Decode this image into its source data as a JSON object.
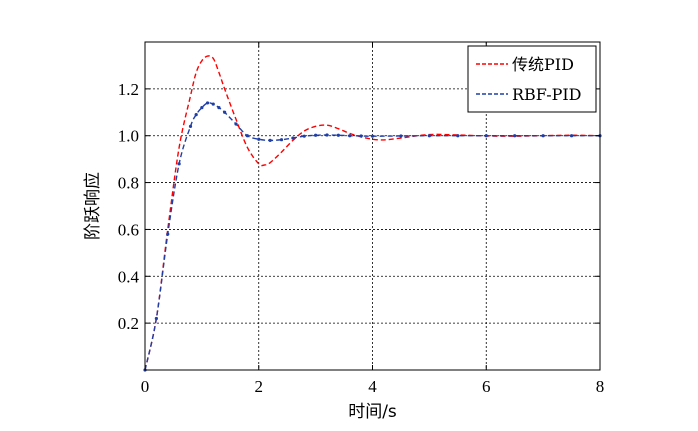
{
  "chart_data": {
    "type": "line",
    "xlabel": "时间/s",
    "ylabel": "阶跃响应",
    "xlim": [
      0,
      8
    ],
    "ylim": [
      0,
      1.4
    ],
    "xticks": [
      0,
      2,
      4,
      6,
      8
    ],
    "yticks": [
      0.2,
      0.4,
      0.6,
      0.8,
      1.0,
      1.2
    ],
    "x_tick_labels": [
      "0",
      "2",
      "4",
      "6",
      "8"
    ],
    "y_tick_labels": [
      "0.2",
      "0.4",
      "0.6",
      "0.8",
      "1.0",
      "1.2"
    ],
    "grid": true,
    "legend_position": "top-right",
    "series": [
      {
        "name": "传统PID",
        "color": "#ff0000",
        "marker": "none",
        "line_style": "dashed",
        "x": [
          0,
          0.2,
          0.4,
          0.6,
          0.8,
          0.9,
          1.0,
          1.1,
          1.2,
          1.3,
          1.4,
          1.6,
          1.8,
          2.0,
          2.1,
          2.2,
          2.4,
          2.6,
          2.8,
          3.0,
          3.2,
          3.4,
          3.6,
          3.8,
          4.0,
          4.2,
          4.5,
          5.0,
          5.5,
          6.0,
          6.5,
          7.0,
          7.5,
          8.0
        ],
        "y": [
          0,
          0.22,
          0.6,
          0.95,
          1.17,
          1.27,
          1.32,
          1.34,
          1.33,
          1.27,
          1.2,
          1.07,
          0.95,
          0.88,
          0.875,
          0.885,
          0.93,
          0.98,
          1.02,
          1.04,
          1.045,
          1.03,
          1.01,
          0.995,
          0.985,
          0.982,
          0.99,
          1.005,
          1.003,
          0.999,
          0.998,
          1.0,
          1.002,
          1.0
        ]
      },
      {
        "name": "RBF-PID",
        "color": "#1f3fa8",
        "marker": "dot",
        "line_style": "dashed",
        "x": [
          0,
          0.2,
          0.4,
          0.6,
          0.8,
          0.9,
          1.0,
          1.1,
          1.2,
          1.3,
          1.4,
          1.6,
          1.8,
          2.0,
          2.2,
          2.4,
          2.6,
          2.8,
          3.0,
          3.2,
          3.4,
          3.6,
          3.8,
          4.0,
          4.5,
          5.0,
          5.5,
          6.0,
          6.5,
          7.0,
          7.5,
          8.0
        ],
        "y": [
          0,
          0.22,
          0.58,
          0.88,
          1.04,
          1.09,
          1.12,
          1.14,
          1.135,
          1.12,
          1.1,
          1.05,
          1.0,
          0.985,
          0.98,
          0.983,
          0.99,
          0.998,
          1.002,
          1.003,
          1.002,
          1.0,
          0.999,
          0.998,
          0.999,
          1.0,
          1.0,
          1.0,
          1.0,
          1.0,
          1.0,
          1.0
        ]
      }
    ]
  }
}
